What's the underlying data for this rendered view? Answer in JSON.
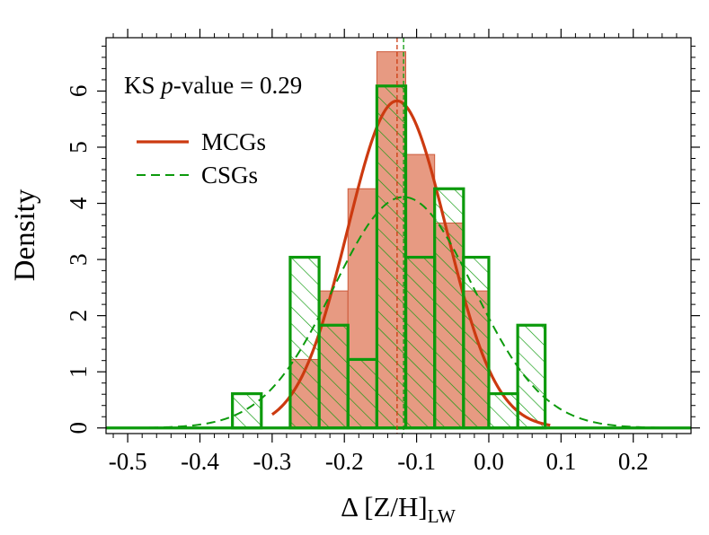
{
  "chart_data": {
    "type": "histogram",
    "xlabel_main": "Δ [Z/H]",
    "xlabel_sub": "LW",
    "ylabel": "Density",
    "xlim": [
      -0.53,
      0.28
    ],
    "ylim": [
      -0.1,
      6.95
    ],
    "x_ticks": [
      -0.5,
      -0.4,
      -0.3,
      -0.2,
      -0.1,
      0.0,
      0.1,
      0.2
    ],
    "x_tick_labels": [
      "-0.5",
      "-0.4",
      "-0.3",
      "-0.2",
      "-0.1",
      "0.0",
      "0.1",
      "0.2"
    ],
    "y_ticks": [
      0,
      1,
      2,
      3,
      4,
      5,
      6
    ],
    "y_tick_labels": [
      "0",
      "1",
      "2",
      "3",
      "4",
      "5",
      "6"
    ],
    "annotation": {
      "prefix": "KS ",
      "italic": "p",
      "suffix": "-value = 0.29"
    },
    "legend": [
      {
        "label": "MCGs",
        "style": "solid",
        "color": "#cc3a10"
      },
      {
        "label": "CSGs",
        "style": "dashed",
        "color": "#0c9a0c"
      }
    ],
    "series": [
      {
        "name": "MCGs",
        "kind": "filled-histogram",
        "fill": "#e79a82",
        "stroke": "#cc5a3a",
        "bins": [
          {
            "x0": -0.275,
            "x1": -0.235,
            "density": 1.22
          },
          {
            "x0": -0.235,
            "x1": -0.195,
            "density": 2.44
          },
          {
            "x0": -0.195,
            "x1": -0.155,
            "density": 4.26
          },
          {
            "x0": -0.155,
            "x1": -0.115,
            "density": 6.7
          },
          {
            "x0": -0.115,
            "x1": -0.075,
            "density": 4.87
          },
          {
            "x0": -0.075,
            "x1": -0.035,
            "density": 3.65
          },
          {
            "x0": -0.035,
            "x1": 0.0,
            "density": 2.44
          }
        ]
      },
      {
        "name": "CSGs",
        "kind": "hatched-step-histogram",
        "color": "#0c9a0c",
        "bins": [
          {
            "x0": -0.355,
            "x1": -0.315,
            "density": 0.61
          },
          {
            "x0": -0.315,
            "x1": -0.275,
            "density": 0.0
          },
          {
            "x0": -0.275,
            "x1": -0.235,
            "density": 3.04
          },
          {
            "x0": -0.235,
            "x1": -0.195,
            "density": 1.83
          },
          {
            "x0": -0.195,
            "x1": -0.155,
            "density": 1.22
          },
          {
            "x0": -0.155,
            "x1": -0.115,
            "density": 6.09
          },
          {
            "x0": -0.115,
            "x1": -0.075,
            "density": 3.04
          },
          {
            "x0": -0.075,
            "x1": -0.035,
            "density": 4.26
          },
          {
            "x0": -0.035,
            "x1": 0.0,
            "density": 3.04
          },
          {
            "x0": 0.0,
            "x1": 0.04,
            "density": 0.61
          },
          {
            "x0": 0.04,
            "x1": 0.078,
            "density": 1.83
          }
        ]
      }
    ],
    "fits": [
      {
        "name": "MCGs",
        "type": "gaussian",
        "mean": -0.127,
        "sd": 0.0685,
        "range": [
          -0.21,
          -0.035
        ],
        "full_range": [
          -0.3,
          0.085
        ],
        "color": "#cc3a10",
        "style": "solid"
      },
      {
        "name": "CSGs",
        "type": "gaussian",
        "mean": -0.118,
        "sd": 0.097,
        "full_range": [
          -0.53,
          0.28
        ],
        "color": "#0c9a0c",
        "style": "dashed"
      }
    ],
    "mean_lines": [
      {
        "name": "MCGs",
        "x": -0.127,
        "color": "#cc3a10"
      },
      {
        "name": "CSGs",
        "x": -0.118,
        "color": "#0c9a0c"
      }
    ]
  }
}
